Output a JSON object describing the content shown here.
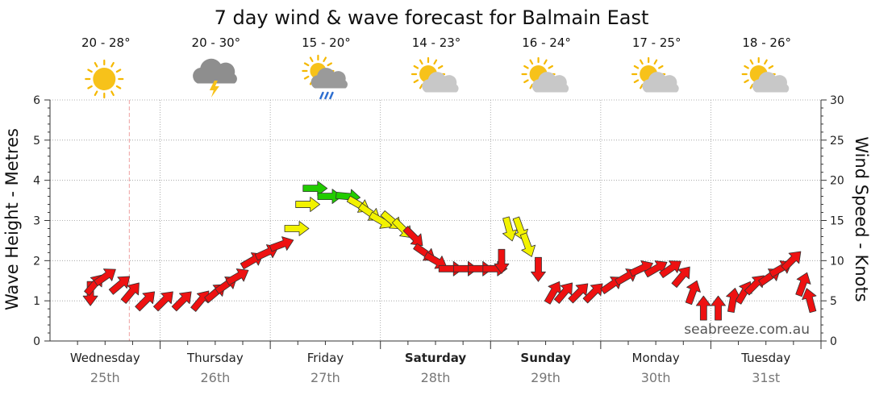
{
  "title": "7 day wind & wave forecast for Balmain East",
  "watermark": "seabreeze.com.au",
  "colors": {
    "arrow_red": "#ee1111",
    "arrow_yellow": "#f2f200",
    "arrow_green": "#22cc00",
    "now_line": "#f0a0a0",
    "grid": "#999999"
  },
  "days": [
    {
      "name": "Wednesday",
      "date": "25th",
      "bold": false,
      "temp": "20 - 28°",
      "icon": "sun-icon"
    },
    {
      "name": "Thursday",
      "date": "26th",
      "bold": false,
      "temp": "20 - 30°",
      "icon": "thunderstorm-icon"
    },
    {
      "name": "Friday",
      "date": "27th",
      "bold": false,
      "temp": "15 - 20°",
      "icon": "sun-cloud-rain-icon"
    },
    {
      "name": "Saturday",
      "date": "28th",
      "bold": true,
      "temp": "14 - 23°",
      "icon": "partly-cloudy-icon"
    },
    {
      "name": "Sunday",
      "date": "29th",
      "bold": true,
      "temp": "16 - 24°",
      "icon": "partly-cloudy-icon"
    },
    {
      "name": "Monday",
      "date": "30th",
      "bold": false,
      "temp": "17 - 25°",
      "icon": "partly-cloudy-icon"
    },
    {
      "name": "Tuesday",
      "date": "31st",
      "bold": false,
      "temp": "18 - 26°",
      "icon": "partly-cloudy-icon"
    }
  ],
  "chart_data": {
    "type": "line",
    "title": "7 day wind & wave forecast for Balmain East",
    "ylabel_left": "Wave Height - Metres",
    "ylabel_right": "Wind Speed - Knots",
    "ylim_left": [
      0,
      6
    ],
    "ylim_right": [
      0,
      30
    ],
    "yticks_left": [
      "0",
      "1",
      "2",
      "3",
      "4",
      "5",
      "6"
    ],
    "yticks_right": [
      "0",
      "5",
      "10",
      "15",
      "20",
      "25",
      "30"
    ],
    "categories": [
      "Wednesday 25th",
      "Thursday 26th",
      "Friday 27th",
      "Saturday 28th",
      "Sunday 29th",
      "Monday 30th",
      "Tuesday 31st"
    ],
    "grid": true,
    "wind_arrows": [
      [
        0.55,
        6,
        0,
        "red"
      ],
      [
        0.6,
        7,
        220,
        "red"
      ],
      [
        0.75,
        8,
        235,
        "red"
      ],
      [
        0.95,
        7,
        230,
        "red"
      ],
      [
        1.1,
        6,
        220,
        "red"
      ],
      [
        1.3,
        5,
        225,
        "red"
      ],
      [
        1.55,
        5,
        225,
        "red"
      ],
      [
        1.8,
        5,
        225,
        "red"
      ],
      [
        2.05,
        5,
        220,
        "red"
      ],
      [
        2.25,
        6,
        230,
        "red"
      ],
      [
        2.4,
        7,
        235,
        "red"
      ],
      [
        2.55,
        8,
        240,
        "red"
      ],
      [
        2.75,
        10,
        240,
        "red"
      ],
      [
        2.95,
        11,
        245,
        "red"
      ],
      [
        3.15,
        12,
        250,
        "red"
      ],
      [
        3.35,
        14,
        270,
        "yellow"
      ],
      [
        3.5,
        17,
        270,
        "yellow"
      ],
      [
        3.6,
        19,
        270,
        "green"
      ],
      [
        3.8,
        18,
        270,
        "green"
      ],
      [
        4.05,
        18,
        275,
        "green"
      ],
      [
        4.2,
        17,
        300,
        "yellow"
      ],
      [
        4.35,
        16,
        305,
        "yellow"
      ],
      [
        4.5,
        15,
        300,
        "yellow"
      ],
      [
        4.65,
        15,
        310,
        "yellow"
      ],
      [
        4.8,
        14,
        315,
        "yellow"
      ],
      [
        4.95,
        13,
        315,
        "red"
      ],
      [
        5.1,
        11,
        305,
        "red"
      ],
      [
        5.25,
        10,
        300,
        "red"
      ],
      [
        5.45,
        9,
        270,
        "red"
      ],
      [
        5.65,
        9,
        270,
        "red"
      ],
      [
        5.85,
        9,
        270,
        "red"
      ],
      [
        6.05,
        9,
        270,
        "red"
      ],
      [
        6.15,
        10,
        0,
        "red"
      ],
      [
        6.25,
        14,
        345,
        "yellow"
      ],
      [
        6.4,
        14,
        340,
        "yellow"
      ],
      [
        6.5,
        12,
        340,
        "yellow"
      ],
      [
        6.65,
        9,
        0,
        "red"
      ],
      [
        6.85,
        6,
        210,
        "red"
      ],
      [
        7.0,
        6,
        220,
        "red"
      ],
      [
        7.2,
        6,
        225,
        "red"
      ],
      [
        7.4,
        6,
        225,
        "red"
      ],
      [
        7.65,
        7,
        235,
        "red"
      ],
      [
        7.85,
        8,
        240,
        "red"
      ],
      [
        8.05,
        9,
        245,
        "red"
      ],
      [
        8.25,
        9,
        240,
        "red"
      ],
      [
        8.45,
        9,
        235,
        "red"
      ],
      [
        8.6,
        8,
        220,
        "red"
      ],
      [
        8.75,
        6,
        200,
        "red"
      ],
      [
        8.9,
        4,
        180,
        "red"
      ],
      [
        9.1,
        4,
        180,
        "red"
      ],
      [
        9.3,
        5,
        190,
        "red"
      ],
      [
        9.45,
        6,
        210,
        "red"
      ],
      [
        9.6,
        7,
        225,
        "red"
      ],
      [
        9.8,
        8,
        235,
        "red"
      ],
      [
        9.95,
        9,
        240,
        "red"
      ],
      [
        10.1,
        10,
        225,
        "red"
      ],
      [
        10.25,
        7,
        200,
        "red"
      ],
      [
        10.35,
        5,
        165,
        "red"
      ]
    ]
  }
}
